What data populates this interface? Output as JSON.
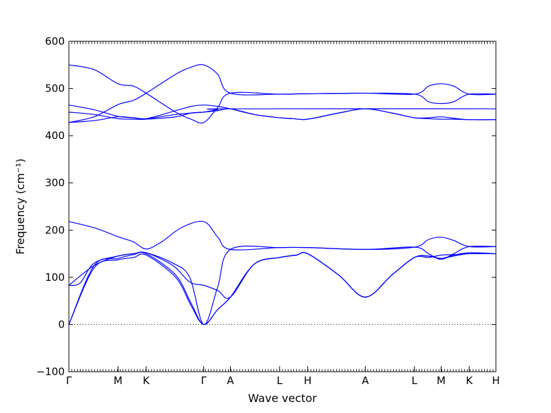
{
  "chart_data": {
    "type": "line",
    "title": "",
    "xlabel": "Wave vector",
    "ylabel": "Frequency (cm⁻¹)",
    "ylim": [
      -100,
      600
    ],
    "yticks": [
      -100,
      0,
      100,
      200,
      300,
      400,
      500,
      600
    ],
    "ytick_labels": [
      "−100",
      "0",
      "100",
      "200",
      "300",
      "400",
      "500",
      "600"
    ],
    "xlim": [
      0,
      15.2
    ],
    "high_symmetry_points": [
      {
        "label": "Γ",
        "x": 0
      },
      {
        "label": "M",
        "x": 1.75
      },
      {
        "label": "K",
        "x": 2.75
      },
      {
        "label": "Γ",
        "x": 4.8
      },
      {
        "label": "A",
        "x": 5.75
      },
      {
        "label": "L",
        "x": 7.5
      },
      {
        "label": "H",
        "x": 8.5
      },
      {
        "label": "A",
        "x": 10.55
      },
      {
        "label": "L",
        "x": 12.3
      },
      {
        "label": "M",
        "x": 13.25
      },
      {
        "label": "K",
        "x": 14.25
      },
      {
        "label": "H",
        "x": 15.2
      }
    ],
    "zero_line": {
      "y": 0,
      "style": "dotted"
    },
    "line_color": "#0000ff",
    "series": [
      {
        "x": [
          0,
          0.9,
          1.75,
          2.3,
          2.75,
          3.8,
          4.35,
          4.8,
          5.3,
          5.75,
          6.6,
          7.5,
          8.1,
          8.5,
          9.6,
          10.55,
          11.5,
          12.3,
          12.8,
          13.25,
          13.7,
          14.25,
          15.2
        ],
        "y": [
          0,
          120,
          137,
          142,
          147,
          100,
          40,
          0,
          32,
          58,
          128,
          142,
          147,
          150,
          105,
          58,
          105,
          142,
          145,
          140,
          145,
          150,
          150
        ]
      },
      {
        "x": [
          0,
          0.9,
          1.75,
          2.3,
          2.75,
          3.8,
          4.35,
          4.8,
          5.3,
          5.75,
          6.6,
          7.5,
          8.1,
          8.5,
          9.6,
          10.55,
          11.5,
          12.3,
          12.8,
          13.25,
          13.7,
          14.25,
          15.2
        ],
        "y": [
          0,
          125,
          140,
          148,
          150,
          105,
          45,
          0,
          32,
          58,
          128,
          142,
          147,
          150,
          105,
          58,
          105,
          142,
          145,
          140,
          147,
          152,
          150
        ]
      },
      {
        "x": [
          0,
          0.4,
          0.9,
          1.75,
          2.3,
          2.75,
          3.7,
          4.3,
          4.8,
          5.3,
          5.75,
          6.6,
          7.5,
          8.1,
          8.5,
          9.6,
          10.55,
          11.5,
          12.3,
          12.8,
          13.25,
          13.7,
          14.25,
          15.2
        ],
        "y": [
          83,
          88,
          130,
          145,
          150,
          152,
          125,
          90,
          83,
          72,
          58,
          128,
          142,
          147,
          150,
          105,
          58,
          105,
          142,
          142,
          147,
          148,
          150,
          150
        ]
      },
      {
        "x": [
          0,
          0.9,
          1.75,
          2.3,
          2.75,
          3.7,
          4.3,
          4.8,
          5.3,
          5.75,
          7.5,
          8.5,
          10.55,
          12.3,
          12.8,
          13.25,
          13.7,
          14.25,
          15.2
        ],
        "y": [
          83,
          125,
          145,
          150,
          152,
          130,
          100,
          0,
          80,
          159,
          163,
          163,
          159,
          164,
          180,
          185,
          178,
          165,
          165
        ]
      },
      {
        "x": [
          0,
          0.9,
          1.75,
          2.3,
          2.75,
          3.3,
          4.0,
          4.8,
          5.3,
          5.75,
          7.5,
          8.5,
          10.55,
          12.3,
          12.8,
          13.25,
          13.7,
          14.25,
          15.2
        ],
        "y": [
          218,
          205,
          186,
          175,
          160,
          175,
          205,
          218,
          185,
          159,
          163,
          163,
          159,
          164,
          150,
          138,
          150,
          165,
          165
        ]
      },
      {
        "x": [
          0,
          0.9,
          1.75,
          2.3,
          2.75,
          3.8,
          4.35,
          4.8,
          5.3,
          5.75,
          7.5,
          8.5,
          10.55,
          12.3,
          12.8,
          13.25,
          13.7,
          14.25,
          15.2
        ],
        "y": [
          428,
          440,
          466,
          475,
          490,
          530,
          545,
          550,
          530,
          490,
          488,
          489,
          490,
          488,
          505,
          510,
          505,
          488,
          488
        ]
      },
      {
        "x": [
          0,
          0.9,
          1.75,
          2.3,
          2.75,
          3.8,
          4.35,
          4.8,
          5.3,
          5.75,
          7.5,
          8.5,
          10.55,
          12.3,
          12.8,
          13.25,
          13.7,
          14.25,
          15.2
        ],
        "y": [
          550,
          540,
          510,
          505,
          490,
          450,
          435,
          428,
          460,
          490,
          488,
          489,
          490,
          488,
          472,
          468,
          472,
          488,
          488
        ]
      },
      {
        "x": [
          0,
          0.9,
          1.75,
          2.3,
          2.75,
          3.8,
          4.35,
          4.8,
          5.3,
          5.75,
          6.6,
          7.5,
          8.0,
          8.5,
          9.6,
          10.55,
          11.5,
          12.3,
          12.8,
          13.25,
          13.7,
          14.25,
          15.2
        ],
        "y": [
          465,
          455,
          441,
          438,
          436,
          453,
          462,
          465,
          462,
          457,
          445,
          438,
          436,
          435,
          448,
          457,
          448,
          438,
          438,
          440,
          437,
          434,
          434
        ]
      },
      {
        "x": [
          0,
          0.9,
          1.75,
          2.3,
          2.75,
          3.8,
          4.35,
          4.8,
          5.3,
          5.75,
          6.6,
          7.5,
          8.0,
          8.5,
          9.6,
          10.55,
          11.5,
          12.3,
          12.8,
          13.25,
          13.7,
          14.25,
          15.2
        ],
        "y": [
          450,
          445,
          436,
          435,
          435,
          440,
          448,
          450,
          453,
          457,
          445,
          438,
          436,
          435,
          448,
          457,
          448,
          438,
          436,
          435,
          435,
          434,
          434
        ]
      },
      {
        "x": [
          0,
          0.9,
          1.75,
          2.3,
          2.75,
          3.8,
          4.35,
          4.8,
          5.3,
          5.75,
          15.2
        ],
        "y": [
          428,
          432,
          440,
          438,
          436,
          445,
          448,
          450,
          455,
          457,
          457
        ]
      }
    ]
  }
}
